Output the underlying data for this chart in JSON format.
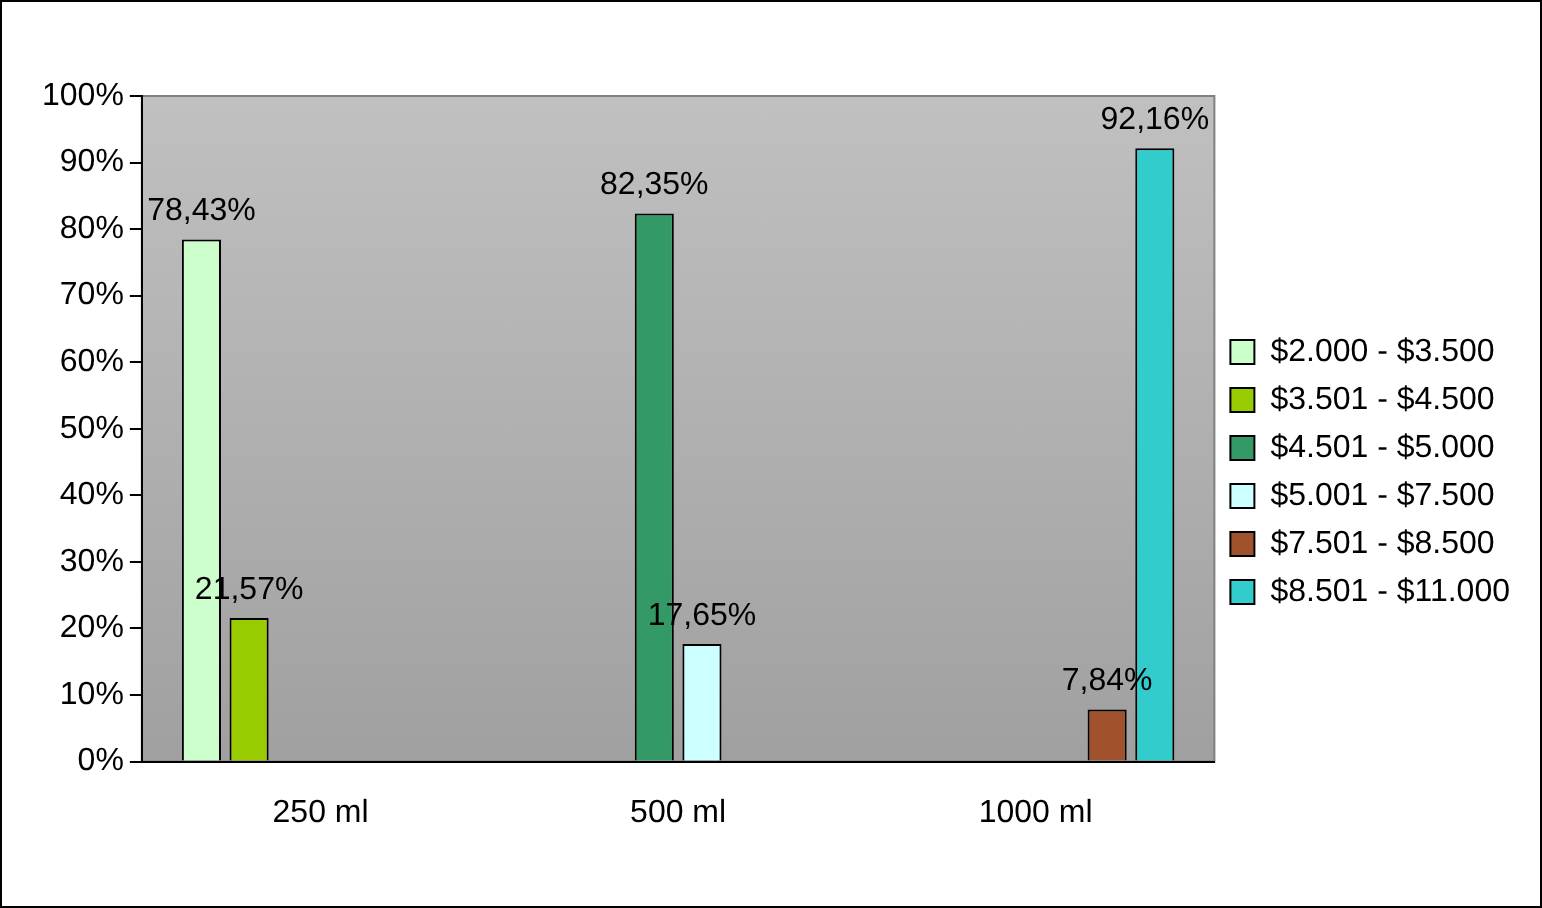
{
  "chart_data": {
    "type": "bar",
    "categories": [
      "250 ml",
      "500 ml",
      "1000 ml"
    ],
    "series": [
      {
        "name": "$2.000 - $3.500",
        "color": "#ccffcc",
        "values": [
          78.43,
          null,
          null
        ],
        "value_labels": [
          "78,43%",
          null,
          null
        ]
      },
      {
        "name": "$3.501 - $4.500",
        "color": "#99cc00",
        "values": [
          21.57,
          null,
          null
        ],
        "value_labels": [
          "21,57%",
          null,
          null
        ]
      },
      {
        "name": "$4.501 - $5.000",
        "color": "#339966",
        "values": [
          null,
          82.35,
          null
        ],
        "value_labels": [
          null,
          "82,35%",
          null
        ]
      },
      {
        "name": "$5.001 - $7.500",
        "color": "#ccffff",
        "values": [
          null,
          17.65,
          null
        ],
        "value_labels": [
          null,
          "17,65%",
          null
        ]
      },
      {
        "name": "$7.501 - $8.500",
        "color": "#a0522d",
        "values": [
          null,
          null,
          7.84
        ],
        "value_labels": [
          null,
          null,
          "7,84%"
        ]
      },
      {
        "name": "$8.501 - $11.000",
        "color": "#33cccc",
        "values": [
          null,
          null,
          92.16
        ],
        "value_labels": [
          null,
          null,
          "92,16%"
        ]
      }
    ],
    "ylim": [
      0,
      100
    ],
    "yticks": [
      {
        "value": 0,
        "label": "0%"
      },
      {
        "value": 10,
        "label": "10%"
      },
      {
        "value": 20,
        "label": "20%"
      },
      {
        "value": 30,
        "label": "30%"
      },
      {
        "value": 40,
        "label": "40%"
      },
      {
        "value": 50,
        "label": "50%"
      },
      {
        "value": 60,
        "label": "60%"
      },
      {
        "value": 70,
        "label": "70%"
      },
      {
        "value": 80,
        "label": "80%"
      },
      {
        "value": 90,
        "label": "90%"
      },
      {
        "value": 100,
        "label": "100%"
      }
    ],
    "grid": false,
    "legend": "right"
  }
}
